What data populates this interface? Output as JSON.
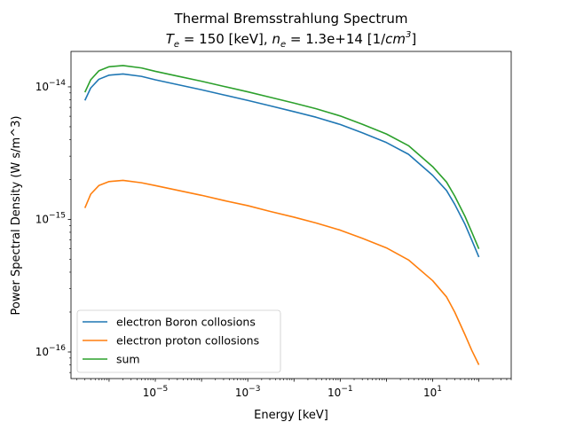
{
  "chart_data": {
    "type": "line",
    "title": "Thermal Bremsstrahlung Spectrum",
    "subtitle": {
      "te_symbol": "T",
      "te_sub": "e",
      "te_value": " = 150 [keV],  ",
      "ne_symbol": "n",
      "ne_sub": "e",
      "ne_value": " = 1.3e+14 [1/",
      "unit_base": "cm",
      "unit_exp": "3",
      "unit_close": "]"
    },
    "xlabel": "Energy [keV]",
    "ylabel": "Power Spectral Density (W s/m^3)",
    "x_scale": "log",
    "y_scale": "log",
    "xlim": [
      1.5e-07,
      500
    ],
    "ylim": [
      6.3e-17,
      1.85e-14
    ],
    "grid": false,
    "legend_position": "lower left",
    "x_ticks": [
      {
        "value": 1e-05,
        "base": "10",
        "exp": "−5"
      },
      {
        "value": 0.001,
        "base": "10",
        "exp": "−3"
      },
      {
        "value": 0.1,
        "base": "10",
        "exp": "−1"
      },
      {
        "value": 10,
        "base": "10",
        "exp": "1"
      }
    ],
    "y_ticks": [
      {
        "value": 1e-16,
        "base": "10",
        "exp": "−16"
      },
      {
        "value": 1e-15,
        "base": "10",
        "exp": "−15"
      },
      {
        "value": 1e-14,
        "base": "10",
        "exp": "−14"
      }
    ],
    "series": [
      {
        "name": "electron Boron collosions",
        "color": "#1f77b4",
        "x": [
          3e-07,
          4e-07,
          6e-07,
          1e-06,
          2e-06,
          5e-06,
          1e-05,
          3e-05,
          0.0001,
          0.0003,
          0.001,
          0.003,
          0.01,
          0.03,
          0.1,
          0.3,
          1,
          3,
          10,
          20,
          30,
          50,
          70,
          100
        ],
        "y": [
          7.9e-15,
          9.8e-15,
          1.14e-14,
          1.225e-14,
          1.25e-14,
          1.2e-14,
          1.13e-14,
          1.04e-14,
          9.5e-15,
          8.7e-15,
          7.9e-15,
          7.2e-15,
          6.5e-15,
          5.9e-15,
          5.2e-15,
          4.5e-15,
          3.8e-15,
          3.1e-15,
          2.15e-15,
          1.65e-15,
          1.3e-15,
          9.2e-16,
          7e-16,
          5.2e-16
        ]
      },
      {
        "name": "electron proton collosions",
        "color": "#ff7f0e",
        "x": [
          3e-07,
          4e-07,
          6e-07,
          1e-06,
          2e-06,
          5e-06,
          1e-05,
          3e-05,
          0.0001,
          0.0003,
          0.001,
          0.003,
          0.01,
          0.03,
          0.1,
          0.3,
          1,
          3,
          10,
          20,
          30,
          50,
          70,
          100
        ],
        "y": [
          1.22e-15,
          1.55e-15,
          1.8e-15,
          1.93e-15,
          1.97e-15,
          1.89e-15,
          1.8e-15,
          1.66e-15,
          1.52e-15,
          1.39e-15,
          1.27e-15,
          1.15e-15,
          1.04e-15,
          9.4e-16,
          8.3e-16,
          7.2e-16,
          6.1e-16,
          4.95e-16,
          3.45e-16,
          2.6e-16,
          2e-16,
          1.35e-16,
          1.03e-16,
          8e-17
        ]
      },
      {
        "name": "sum",
        "color": "#2ca02c",
        "x": [
          3e-07,
          4e-07,
          6e-07,
          1e-06,
          2e-06,
          5e-06,
          1e-05,
          3e-05,
          0.0001,
          0.0003,
          0.001,
          0.003,
          0.01,
          0.03,
          0.1,
          0.3,
          1,
          3,
          10,
          20,
          30,
          50,
          70,
          100
        ],
        "y": [
          9.1e-15,
          1.13e-14,
          1.32e-14,
          1.418e-14,
          1.447e-14,
          1.389e-14,
          1.31e-14,
          1.206e-14,
          1.102e-14,
          1.009e-14,
          9.17e-15,
          8.35e-15,
          7.54e-15,
          6.84e-15,
          6.03e-15,
          5.22e-15,
          4.41e-15,
          3.6e-15,
          2.5e-15,
          1.91e-15,
          1.5e-15,
          1.055e-15,
          8.03e-16,
          6e-16
        ]
      }
    ]
  }
}
